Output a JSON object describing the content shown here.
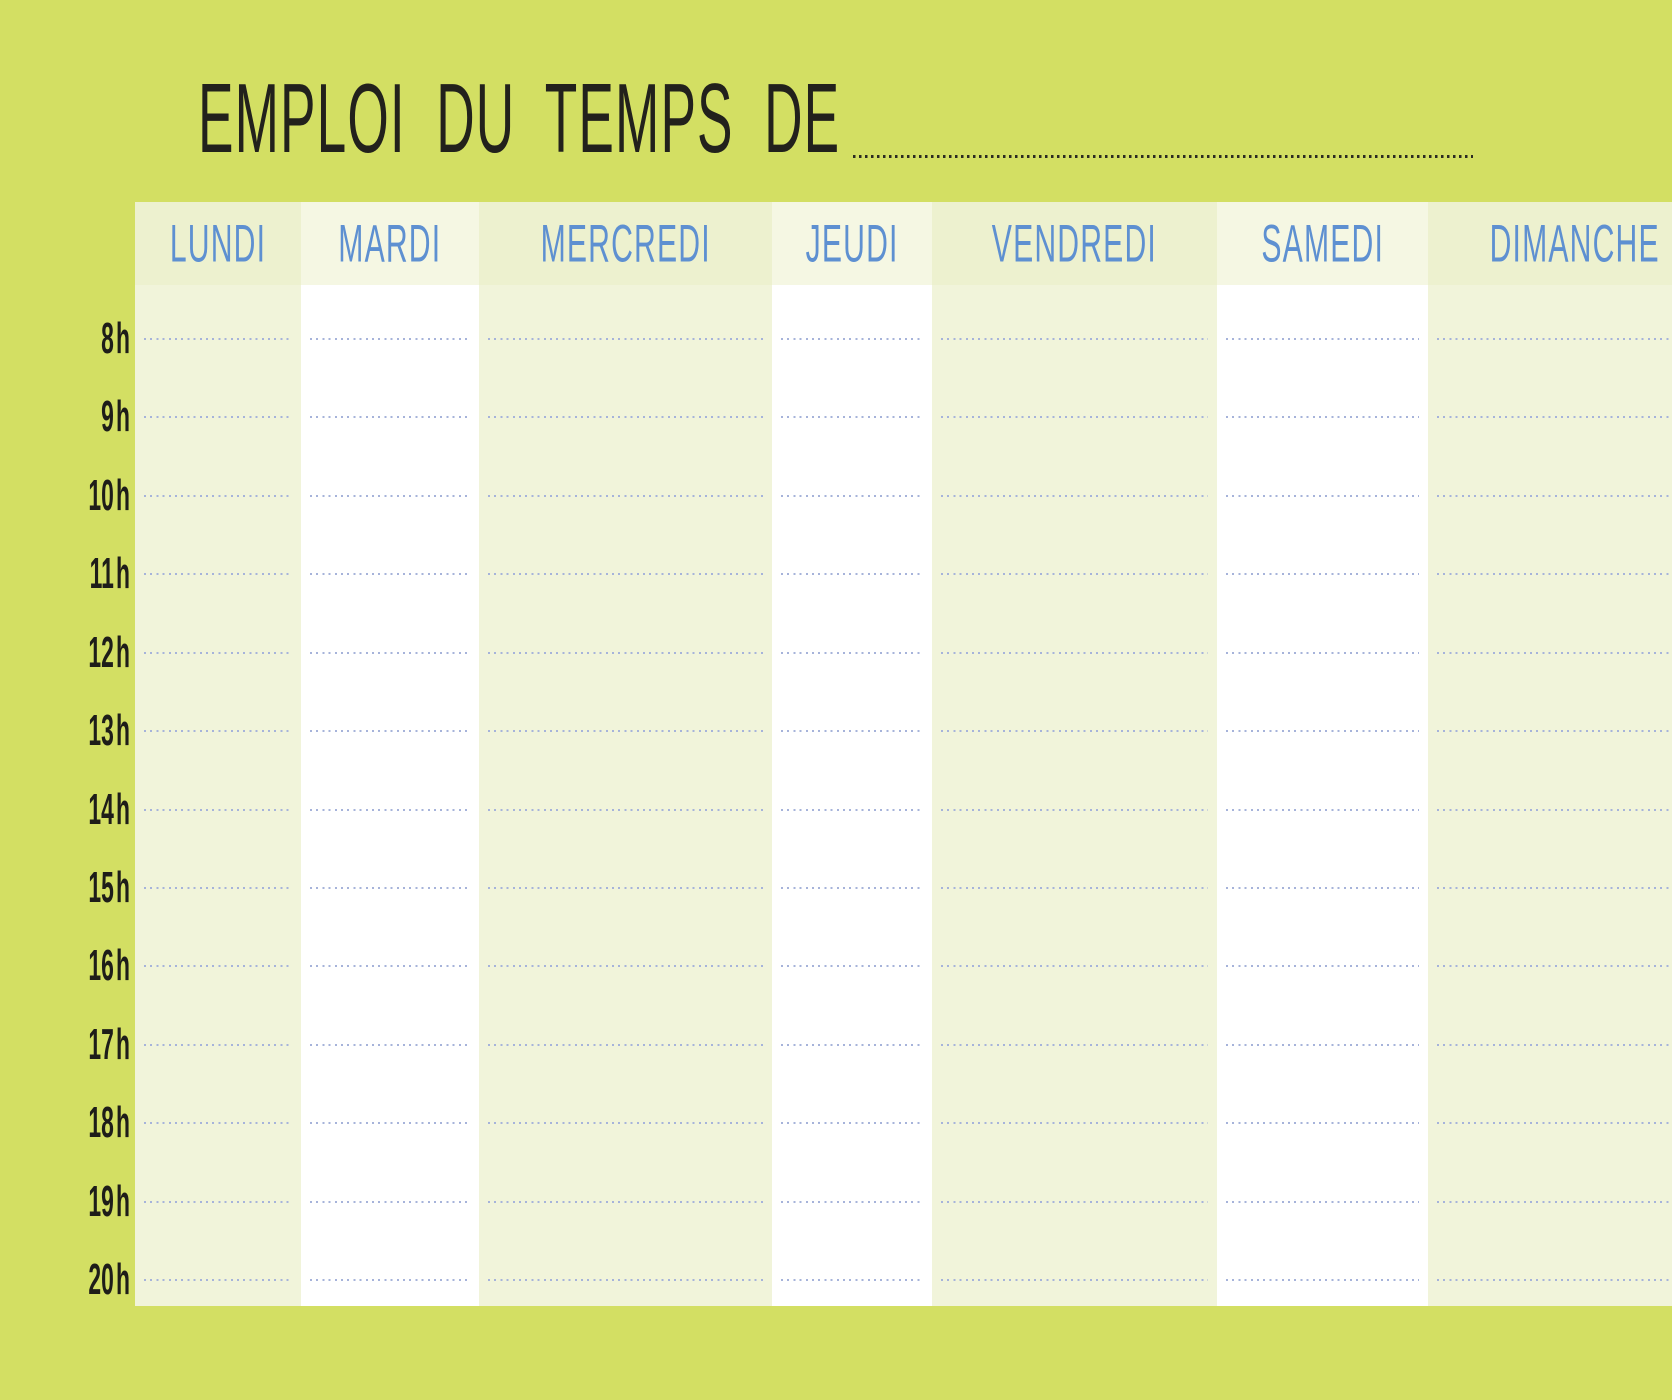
{
  "page": {
    "background_color": "#d3df63",
    "title": "EMPLOI DU TEMPS DE"
  },
  "schedule": {
    "days": [
      "LUNDI",
      "MARDI",
      "MERCREDI",
      "JEUDI",
      "VENDREDI",
      "SAMEDI",
      "DIMANCHE"
    ],
    "hours": [
      "8 h",
      "9 h",
      "10 h",
      "11 h",
      "12 h",
      "13 h",
      "14 h",
      "15 h",
      "16 h",
      "17 h",
      "18 h",
      "19 h",
      "20 h"
    ],
    "colors": {
      "title_text": "#22211c",
      "title_dotted_line": "#2b2b22",
      "day_header_text": "#5e90d1",
      "hour_label_text": "#1e1d19",
      "hour_dotted_line": "#a6b3da",
      "tinted_column_header": "#edf1cf",
      "tinted_column_body": "#f1f4da",
      "white_column_header": "#f5f7e3",
      "white_column_body": "#ffffff"
    }
  }
}
